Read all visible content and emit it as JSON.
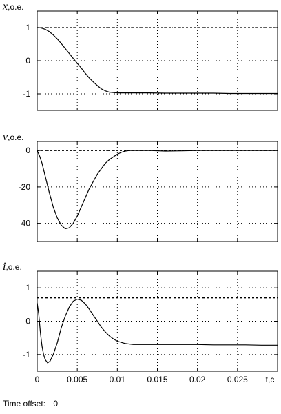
{
  "footer": {
    "label": "Time offset:",
    "value": "0"
  },
  "chart_data": [
    {
      "type": "line",
      "ylabel_sym": "x",
      "ylabel_unit": ",o.e.",
      "xlim": [
        0,
        0.03
      ],
      "ylim": [
        -1.5,
        1.5
      ],
      "yticks": [
        1,
        0,
        -1
      ],
      "yticklabels": [
        "1",
        "0",
        "-1"
      ],
      "xticks": [
        0,
        0.005,
        0.01,
        0.015,
        0.02,
        0.025
      ],
      "grid": true,
      "reference": 1,
      "x": [
        0,
        0.0005,
        0.001,
        0.0015,
        0.002,
        0.0025,
        0.003,
        0.0035,
        0.004,
        0.0045,
        0.005,
        0.0055,
        0.006,
        0.0065,
        0.007,
        0.0075,
        0.008,
        0.0085,
        0.009,
        0.0095,
        0.01,
        0.011,
        0.012,
        0.014,
        0.016,
        0.018,
        0.02,
        0.022,
        0.024,
        0.026,
        0.028,
        0.03
      ],
      "y": [
        1.0,
        0.99,
        0.95,
        0.88,
        0.78,
        0.66,
        0.52,
        0.37,
        0.22,
        0.07,
        -0.08,
        -0.22,
        -0.38,
        -0.52,
        -0.64,
        -0.75,
        -0.85,
        -0.91,
        -0.95,
        -0.96,
        -0.97,
        -0.97,
        -0.97,
        -0.97,
        -0.98,
        -0.98,
        -0.98,
        -0.98,
        -0.99,
        -0.99,
        -0.99,
        -0.99
      ]
    },
    {
      "type": "line",
      "ylabel_sym": "v",
      "ylabel_unit": ",o.e.",
      "xlim": [
        0,
        0.03
      ],
      "ylim": [
        -50,
        5
      ],
      "yticks": [
        0,
        -20,
        -40
      ],
      "yticklabels": [
        "0",
        "-20",
        "-40"
      ],
      "xticks": [
        0,
        0.005,
        0.01,
        0.015,
        0.02,
        0.025
      ],
      "grid": true,
      "reference": 0,
      "x": [
        0,
        0.0003,
        0.0006,
        0.001,
        0.0015,
        0.002,
        0.0025,
        0.003,
        0.0035,
        0.004,
        0.0045,
        0.005,
        0.0055,
        0.006,
        0.0065,
        0.007,
        0.0075,
        0.008,
        0.0085,
        0.009,
        0.0095,
        0.01,
        0.0105,
        0.011,
        0.0115,
        0.012,
        0.013,
        0.014,
        0.016,
        0.018,
        0.02,
        0.022,
        0.024,
        0.026,
        0.028,
        0.03
      ],
      "y": [
        0,
        -3,
        -7,
        -14,
        -23,
        -31,
        -37,
        -41,
        -43,
        -42.5,
        -40,
        -36,
        -31,
        -26,
        -21,
        -17,
        -13,
        -10,
        -7,
        -5,
        -3.5,
        -2,
        -1,
        -0.3,
        0,
        0,
        0,
        0,
        -0.3,
        -0.2,
        0,
        0,
        0,
        0,
        0,
        0
      ]
    },
    {
      "type": "line",
      "ylabel_sym": "i",
      "ylabel_unit": ",o.e.",
      "xlabel": "t,c",
      "xlim": [
        0,
        0.03
      ],
      "ylim": [
        -1.5,
        1.5
      ],
      "yticks": [
        1,
        0,
        -1
      ],
      "yticklabels": [
        "1",
        "0",
        "-1"
      ],
      "xticks": [
        0,
        0.005,
        0.01,
        0.015,
        0.02,
        0.025
      ],
      "xticklabels": [
        "0",
        "0.005",
        "0.01",
        "0.015",
        "0.02",
        "0.025"
      ],
      "grid": true,
      "reference": 0.7,
      "x": [
        0,
        0.0002,
        0.0004,
        0.0006,
        0.0008,
        0.001,
        0.0013,
        0.0016,
        0.002,
        0.0025,
        0.003,
        0.0035,
        0.004,
        0.0045,
        0.005,
        0.0055,
        0.006,
        0.0065,
        0.007,
        0.0075,
        0.008,
        0.0085,
        0.009,
        0.0095,
        0.01,
        0.011,
        0.012,
        0.013,
        0.014,
        0.016,
        0.018,
        0.02,
        0.022,
        0.024,
        0.026,
        0.028,
        0.03
      ],
      "y": [
        0.55,
        0.2,
        -0.35,
        -0.75,
        -1.0,
        -1.15,
        -1.25,
        -1.2,
        -1.0,
        -0.65,
        -0.2,
        0.15,
        0.42,
        0.6,
        0.66,
        0.63,
        0.52,
        0.36,
        0.18,
        0.0,
        -0.18,
        -0.32,
        -0.44,
        -0.53,
        -0.6,
        -0.67,
        -0.7,
        -0.7,
        -0.7,
        -0.7,
        -0.7,
        -0.7,
        -0.71,
        -0.71,
        -0.71,
        -0.72,
        -0.72
      ]
    }
  ]
}
